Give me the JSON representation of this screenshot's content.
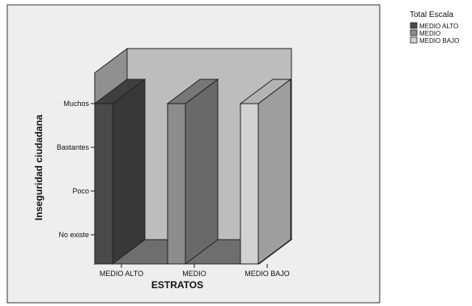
{
  "chart_data": {
    "type": "bar",
    "categories": [
      "MEDIO ALTO",
      "MEDIO",
      "MEDIO BAJO"
    ],
    "yticks": [
      "No existe",
      "Poco",
      "Bastantes",
      "Muchos"
    ],
    "values": [
      4,
      4,
      4
    ],
    "ylim": [
      1,
      4
    ],
    "xlabel": "ESTRATOS",
    "ylabel": "Inseguridad ciudadana",
    "legend": {
      "title": "Total Escala",
      "placement": "top-right",
      "entries": [
        {
          "label": "MEDIO ALTO",
          "color": "#4a4a4a"
        },
        {
          "label": "MEDIO",
          "color": "#8c8c8c"
        },
        {
          "label": "MEDIO BAJO",
          "color": "#d2d2d2"
        }
      ]
    },
    "style": "3d-bar",
    "grid": false
  },
  "colors": {
    "plot_background": "#eeeeee",
    "wall": "#bdbdbd",
    "wall_side": "#909090",
    "floor": "#6e6e6e"
  }
}
